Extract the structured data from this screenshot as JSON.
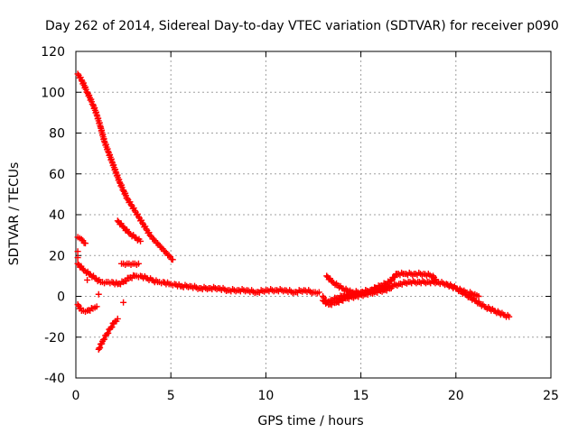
{
  "chart_data": {
    "type": "scatter",
    "title": "Day 262 of 2014, Sidereal Day-to-day VTEC variation (SDTVAR) for receiver p090",
    "xlabel": "GPS time / hours",
    "ylabel": "SDTVAR / TECUs",
    "xlim": [
      0,
      25
    ],
    "ylim": [
      -40,
      120
    ],
    "xticks": [
      0,
      5,
      10,
      15,
      20,
      25
    ],
    "yticks": [
      -40,
      -20,
      0,
      20,
      40,
      60,
      80,
      100,
      120
    ],
    "grid": true,
    "marker": "+",
    "color": "#ff0000",
    "series": [
      {
        "name": "arc-high-descending",
        "points": [
          [
            0.1,
            109
          ],
          [
            0.3,
            106
          ],
          [
            0.6,
            100
          ],
          [
            0.9,
            94
          ],
          [
            1.1,
            89
          ],
          [
            1.3,
            83
          ],
          [
            1.5,
            76
          ],
          [
            1.7,
            71
          ],
          [
            1.9,
            66
          ],
          [
            2.1,
            61
          ],
          [
            2.3,
            56
          ],
          [
            2.5,
            52
          ],
          [
            2.7,
            48
          ],
          [
            2.9,
            45
          ],
          [
            3.1,
            42
          ],
          [
            3.3,
            39
          ],
          [
            3.5,
            36
          ],
          [
            3.7,
            33
          ],
          [
            3.9,
            30
          ],
          [
            4.1,
            28
          ],
          [
            4.3,
            26
          ],
          [
            4.5,
            24
          ],
          [
            4.7,
            22
          ],
          [
            4.9,
            20
          ],
          [
            5.1,
            18
          ]
        ]
      },
      {
        "name": "arc-mid-descending",
        "points": [
          [
            2.2,
            37
          ],
          [
            2.5,
            34
          ],
          [
            2.8,
            31
          ],
          [
            3.1,
            29
          ],
          [
            3.4,
            27
          ]
        ]
      },
      {
        "name": "arc-start-30",
        "points": [
          [
            0.1,
            29
          ],
          [
            0.3,
            28
          ],
          [
            0.5,
            26
          ]
        ]
      },
      {
        "name": "arc-plateau-16",
        "points": [
          [
            2.4,
            16
          ],
          [
            2.7,
            16
          ],
          [
            3.0,
            16
          ],
          [
            3.3,
            16
          ]
        ]
      },
      {
        "name": "arc-negative-rising",
        "points": [
          [
            1.2,
            -26
          ],
          [
            1.4,
            -22
          ],
          [
            1.6,
            -19
          ],
          [
            1.8,
            -16
          ],
          [
            2.0,
            -13
          ],
          [
            2.2,
            -11
          ]
        ]
      },
      {
        "name": "arc-negative-start",
        "points": [
          [
            0.1,
            -4
          ],
          [
            0.3,
            -7
          ],
          [
            0.6,
            -7
          ],
          [
            0.9,
            -6
          ],
          [
            1.1,
            -5
          ]
        ]
      },
      {
        "name": "arc-main-baseline",
        "points": [
          [
            0.1,
            16
          ],
          [
            0.4,
            13
          ],
          [
            0.7,
            11
          ],
          [
            1.0,
            9
          ],
          [
            1.3,
            7
          ],
          [
            1.6,
            7
          ],
          [
            1.9,
            7
          ],
          [
            2.2,
            6
          ],
          [
            2.5,
            7
          ],
          [
            2.8,
            9
          ],
          [
            3.1,
            10
          ],
          [
            3.4,
            10
          ],
          [
            3.7,
            9
          ],
          [
            4.0,
            8
          ],
          [
            4.3,
            7
          ],
          [
            4.6,
            7
          ],
          [
            4.9,
            6
          ],
          [
            5.2,
            6
          ],
          [
            5.5,
            5
          ],
          [
            6.0,
            5
          ],
          [
            6.5,
            4
          ],
          [
            7.0,
            4
          ],
          [
            7.5,
            4
          ],
          [
            8.0,
            3
          ],
          [
            8.5,
            3
          ],
          [
            9.0,
            3
          ],
          [
            9.5,
            2
          ],
          [
            10.0,
            3
          ],
          [
            10.5,
            3
          ],
          [
            11.0,
            3
          ],
          [
            11.5,
            2
          ],
          [
            12.0,
            3
          ],
          [
            12.5,
            2
          ],
          [
            12.8,
            2
          ]
        ]
      },
      {
        "name": "arc-late-upper",
        "points": [
          [
            13.0,
            0
          ],
          [
            13.2,
            -3
          ],
          [
            13.4,
            -2
          ],
          [
            13.7,
            -1
          ],
          [
            14.0,
            0
          ],
          [
            14.5,
            1
          ],
          [
            15.0,
            2
          ],
          [
            15.5,
            3
          ],
          [
            16.0,
            4
          ],
          [
            16.5,
            5
          ],
          [
            17.0,
            6
          ],
          [
            17.5,
            7
          ],
          [
            18.0,
            7
          ],
          [
            18.5,
            7
          ],
          [
            19.0,
            7
          ],
          [
            19.5,
            6
          ],
          [
            20.0,
            4
          ],
          [
            20.5,
            1
          ],
          [
            21.0,
            -2
          ],
          [
            21.5,
            -5
          ],
          [
            22.0,
            -7
          ],
          [
            22.5,
            -9
          ],
          [
            22.8,
            -10
          ]
        ]
      },
      {
        "name": "arc-late-hump",
        "points": [
          [
            13.2,
            10
          ],
          [
            13.5,
            7
          ],
          [
            14.0,
            4
          ],
          [
            14.5,
            2
          ],
          [
            15.0,
            2
          ],
          [
            15.5,
            3
          ],
          [
            16.0,
            5
          ],
          [
            16.5,
            7
          ],
          [
            16.9,
            11
          ],
          [
            17.3,
            11
          ],
          [
            17.8,
            11
          ],
          [
            18.3,
            11
          ],
          [
            18.8,
            10
          ],
          [
            19.0,
            7
          ]
        ]
      },
      {
        "name": "arc-late-lower",
        "points": [
          [
            13.0,
            -2
          ],
          [
            13.3,
            -4
          ],
          [
            13.7,
            -3
          ],
          [
            14.2,
            -1
          ],
          [
            14.7,
            0
          ],
          [
            15.2,
            1
          ],
          [
            15.7,
            2
          ],
          [
            16.2,
            3
          ],
          [
            16.6,
            4
          ]
        ]
      },
      {
        "name": "arc-20h",
        "points": [
          [
            19.5,
            6
          ],
          [
            20.0,
            4
          ],
          [
            20.5,
            2
          ],
          [
            21.0,
            1
          ],
          [
            21.2,
            0
          ]
        ]
      }
    ],
    "isolated_points": [
      [
        0.1,
        22
      ],
      [
        0.1,
        19
      ],
      [
        1.2,
        1
      ],
      [
        0.6,
        8
      ],
      [
        2.5,
        -3
      ]
    ]
  }
}
